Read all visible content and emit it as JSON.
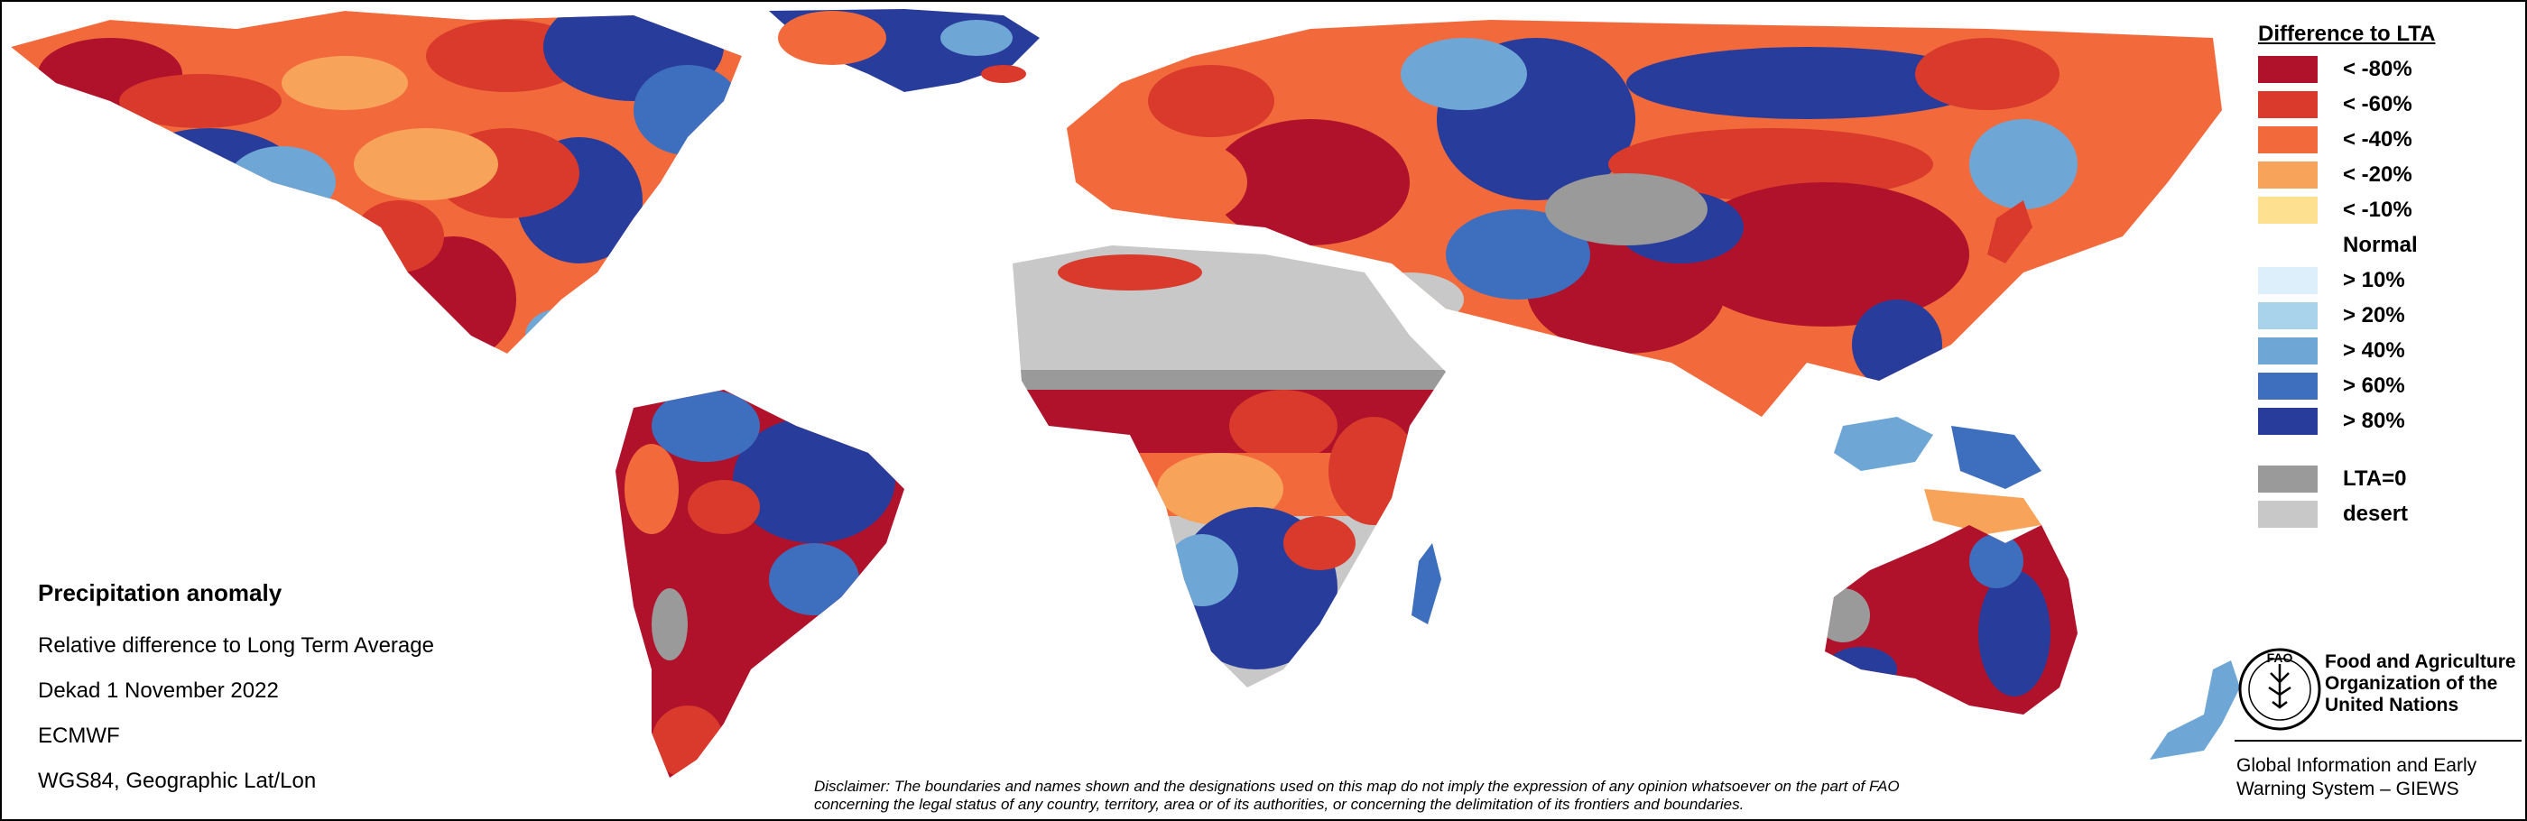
{
  "map": {
    "colors": {
      "ocean": "#ffffff",
      "desert": "#c8c8c8",
      "lta_zero": "#9a9a9a",
      "very_dry": "#b0122c",
      "dry": "#d93a2b",
      "moderately_dry": "#f26a3c",
      "slightly_dry": "#f8a35a",
      "marginally_dry": "#fde090",
      "normal": "#f4f4f4",
      "slightly_wet": "#dceffa",
      "moderately_wet": "#a9d3ea",
      "wet": "#6ea6d6",
      "very_wet": "#3e6fbf",
      "extremely_wet": "#283c9b"
    }
  },
  "info": {
    "title": "Precipitation anomaly",
    "lines": [
      "Relative difference to Long Term Average",
      "Dekad 1 November 2022",
      "ECMWF",
      "WGS84, Geographic Lat/Lon"
    ]
  },
  "legend": {
    "title": "Difference to LTA",
    "items": [
      {
        "label": "< -80%",
        "color": "#b0122c"
      },
      {
        "label": "< -60%",
        "color": "#d93a2b"
      },
      {
        "label": "< -40%",
        "color": "#f26a3c"
      },
      {
        "label": "< -20%",
        "color": "#f8a35a"
      },
      {
        "label": "< -10%",
        "color": "#fde090"
      },
      {
        "label": "Normal",
        "color": ""
      },
      {
        "label": "> 10%",
        "color": "#dceffa"
      },
      {
        "label": "> 20%",
        "color": "#a9d3ea"
      },
      {
        "label": "> 40%",
        "color": "#6ea6d6"
      },
      {
        "label": "> 60%",
        "color": "#3e6fbf"
      },
      {
        "label": "> 80%",
        "color": "#283c9b"
      },
      {
        "label": "LTA=0",
        "color": "#9a9a9a"
      },
      {
        "label": "desert",
        "color": "#c8c8c8"
      }
    ]
  },
  "disclaimer": {
    "line1": "Disclaimer: The boundaries and names shown and the designations used on this map do not imply the expression of any opinion whatsoever on the part of FAO",
    "line2": "concerning the legal status of any country, territory, area or of its authorities, or concerning the delimitation of its frontiers and boundaries."
  },
  "fao": {
    "logo_letters": "FAO",
    "name_lines": [
      "Food and Agriculture",
      "Organization of the",
      "United Nations"
    ]
  },
  "giews": {
    "lines": [
      "Global Information and Early",
      "Warning System – GIEWS"
    ]
  }
}
